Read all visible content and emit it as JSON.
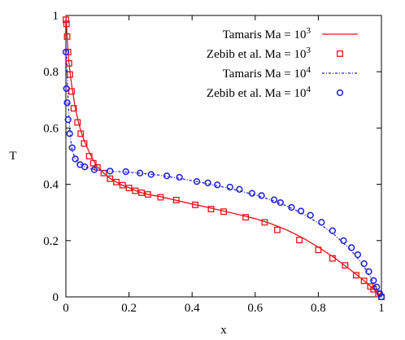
{
  "chart_data": {
    "type": "line",
    "title": "",
    "xlabel": "x",
    "ylabel": "T",
    "xlim": [
      0,
      1
    ],
    "ylim": [
      0,
      1
    ],
    "xticks": [
      "0",
      "0.2",
      "0.4",
      "0.6",
      "0.8",
      "1"
    ],
    "yticks": [
      "0",
      "0.2",
      "0.4",
      "0.6",
      "0.8",
      "1"
    ],
    "grid": false,
    "legend_position": "top-right",
    "series": [
      {
        "name": "Tamaris Ma = 10³",
        "legend_base": "Tamaris Ma = 10",
        "legend_exp": "3",
        "style": "solid-line",
        "color": "#e8141a",
        "points": [
          [
            0.0,
            1.0
          ],
          [
            0.002,
            0.97
          ],
          [
            0.004,
            0.925
          ],
          [
            0.007,
            0.87
          ],
          [
            0.01,
            0.83
          ],
          [
            0.014,
            0.79
          ],
          [
            0.02,
            0.74
          ],
          [
            0.03,
            0.67
          ],
          [
            0.04,
            0.62
          ],
          [
            0.05,
            0.58
          ],
          [
            0.06,
            0.55
          ],
          [
            0.07,
            0.525
          ],
          [
            0.08,
            0.5
          ],
          [
            0.09,
            0.48
          ],
          [
            0.1,
            0.462
          ],
          [
            0.12,
            0.44
          ],
          [
            0.14,
            0.421
          ],
          [
            0.16,
            0.408
          ],
          [
            0.18,
            0.396
          ],
          [
            0.2,
            0.388
          ],
          [
            0.22,
            0.378
          ],
          [
            0.24,
            0.37
          ],
          [
            0.26,
            0.364
          ],
          [
            0.3,
            0.356
          ],
          [
            0.35,
            0.343
          ],
          [
            0.4,
            0.33
          ],
          [
            0.45,
            0.318
          ],
          [
            0.5,
            0.305
          ],
          [
            0.55,
            0.292
          ],
          [
            0.6,
            0.278
          ],
          [
            0.65,
            0.26
          ],
          [
            0.7,
            0.238
          ],
          [
            0.75,
            0.21
          ],
          [
            0.8,
            0.177
          ],
          [
            0.85,
            0.14
          ],
          [
            0.9,
            0.098
          ],
          [
            0.94,
            0.062
          ],
          [
            0.97,
            0.033
          ],
          [
            0.99,
            0.012
          ],
          [
            1.0,
            0.0
          ]
        ]
      },
      {
        "name": "Zebib et al. Ma = 10³",
        "legend_base": "Zebib et al. Ma = 10",
        "legend_exp": "3",
        "style": "open-square",
        "color": "#e8141a",
        "points": [
          [
            0.0,
            0.985
          ],
          [
            0.002,
            0.97
          ],
          [
            0.004,
            0.925
          ],
          [
            0.007,
            0.87
          ],
          [
            0.01,
            0.83
          ],
          [
            0.013,
            0.79
          ],
          [
            0.018,
            0.73
          ],
          [
            0.025,
            0.67
          ],
          [
            0.037,
            0.62
          ],
          [
            0.047,
            0.58
          ],
          [
            0.058,
            0.545
          ],
          [
            0.074,
            0.5
          ],
          [
            0.087,
            0.475
          ],
          [
            0.1,
            0.46
          ],
          [
            0.12,
            0.44
          ],
          [
            0.14,
            0.42
          ],
          [
            0.16,
            0.408
          ],
          [
            0.18,
            0.397
          ],
          [
            0.2,
            0.387
          ],
          [
            0.22,
            0.377
          ],
          [
            0.24,
            0.37
          ],
          [
            0.26,
            0.364
          ],
          [
            0.3,
            0.354
          ],
          [
            0.35,
            0.344
          ],
          [
            0.41,
            0.327
          ],
          [
            0.46,
            0.312
          ],
          [
            0.5,
            0.303
          ],
          [
            0.57,
            0.283
          ],
          [
            0.63,
            0.265
          ],
          [
            0.67,
            0.238
          ],
          [
            0.74,
            0.202
          ],
          [
            0.8,
            0.167
          ],
          [
            0.845,
            0.137
          ],
          [
            0.885,
            0.112
          ],
          [
            0.92,
            0.077
          ],
          [
            0.945,
            0.057
          ],
          [
            0.965,
            0.037
          ],
          [
            0.975,
            0.027
          ],
          [
            0.99,
            0.01
          ],
          [
            1.0,
            0.0
          ]
        ]
      },
      {
        "name": "Tamaris Ma = 10⁴",
        "legend_base": "Tamaris Ma = 10",
        "legend_exp": "4",
        "style": "dash-dot-line",
        "color": "#1f1fd9",
        "points": [
          [
            0.0,
            0.9
          ],
          [
            0.003,
            0.83
          ],
          [
            0.005,
            0.75
          ],
          [
            0.008,
            0.68
          ],
          [
            0.012,
            0.6
          ],
          [
            0.015,
            0.56
          ],
          [
            0.02,
            0.52
          ],
          [
            0.03,
            0.49
          ],
          [
            0.04,
            0.475
          ],
          [
            0.06,
            0.462
          ],
          [
            0.08,
            0.455
          ],
          [
            0.1,
            0.451
          ],
          [
            0.15,
            0.446
          ],
          [
            0.2,
            0.443
          ],
          [
            0.25,
            0.438
          ],
          [
            0.3,
            0.432
          ],
          [
            0.35,
            0.423
          ],
          [
            0.4,
            0.413
          ],
          [
            0.45,
            0.402
          ],
          [
            0.5,
            0.39
          ],
          [
            0.55,
            0.377
          ],
          [
            0.6,
            0.362
          ],
          [
            0.65,
            0.345
          ],
          [
            0.7,
            0.323
          ],
          [
            0.75,
            0.296
          ],
          [
            0.8,
            0.263
          ],
          [
            0.85,
            0.222
          ],
          [
            0.9,
            0.17
          ],
          [
            0.93,
            0.13
          ],
          [
            0.95,
            0.098
          ],
          [
            0.97,
            0.06
          ],
          [
            0.985,
            0.03
          ],
          [
            0.995,
            0.01
          ],
          [
            1.0,
            0.0
          ]
        ]
      },
      {
        "name": "Zebib et al. Ma = 10⁴",
        "legend_base": "Zebib et al. Ma = 10",
        "legend_exp": "4",
        "style": "open-circle",
        "color": "#1f1fd9",
        "points": [
          [
            0.0,
            0.87
          ],
          [
            0.002,
            0.74
          ],
          [
            0.004,
            0.69
          ],
          [
            0.007,
            0.63
          ],
          [
            0.012,
            0.58
          ],
          [
            0.02,
            0.53
          ],
          [
            0.03,
            0.49
          ],
          [
            0.045,
            0.47
          ],
          [
            0.06,
            0.462
          ],
          [
            0.09,
            0.452
          ],
          [
            0.14,
            0.447
          ],
          [
            0.19,
            0.445
          ],
          [
            0.235,
            0.44
          ],
          [
            0.27,
            0.435
          ],
          [
            0.32,
            0.43
          ],
          [
            0.36,
            0.425
          ],
          [
            0.415,
            0.41
          ],
          [
            0.45,
            0.405
          ],
          [
            0.48,
            0.398
          ],
          [
            0.52,
            0.39
          ],
          [
            0.55,
            0.382
          ],
          [
            0.59,
            0.368
          ],
          [
            0.62,
            0.36
          ],
          [
            0.66,
            0.345
          ],
          [
            0.68,
            0.335
          ],
          [
            0.715,
            0.318
          ],
          [
            0.745,
            0.305
          ],
          [
            0.775,
            0.29
          ],
          [
            0.81,
            0.265
          ],
          [
            0.845,
            0.235
          ],
          [
            0.88,
            0.2
          ],
          [
            0.905,
            0.175
          ],
          [
            0.925,
            0.15
          ],
          [
            0.945,
            0.118
          ],
          [
            0.96,
            0.09
          ],
          [
            0.975,
            0.058
          ],
          [
            0.985,
            0.035
          ],
          [
            0.995,
            0.012
          ],
          [
            1.0,
            0.0
          ]
        ]
      }
    ]
  }
}
